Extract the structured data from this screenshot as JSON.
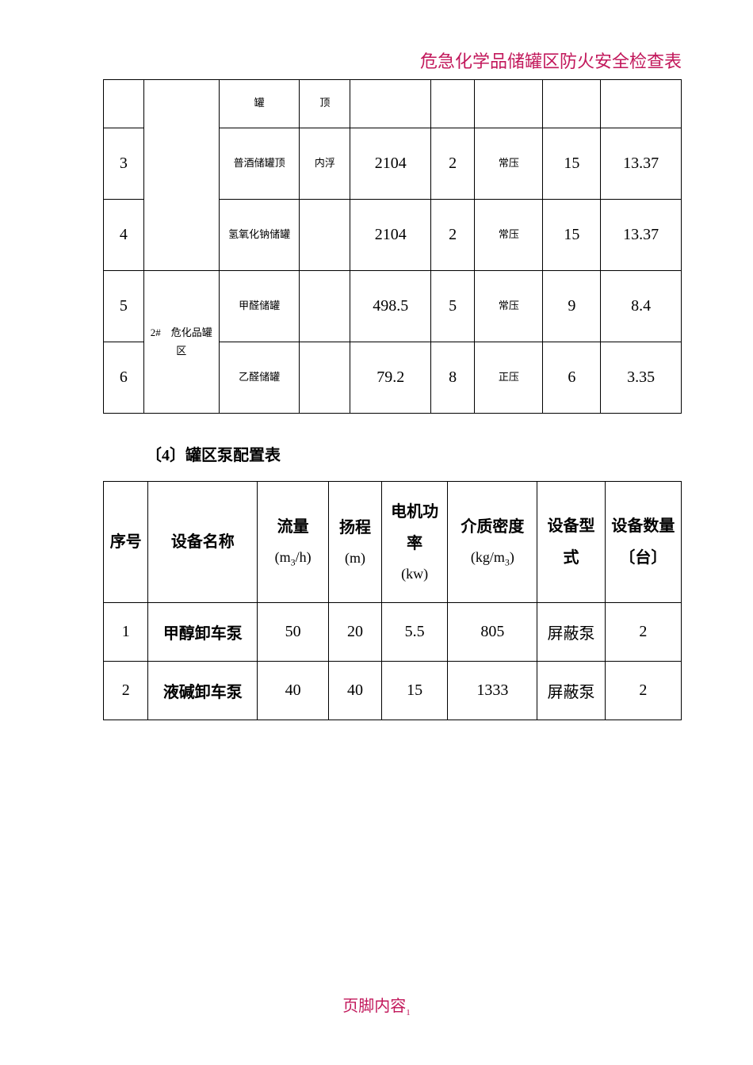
{
  "header": {
    "title": "危急化学品储罐区防火安全检查表",
    "color": "#c2185b"
  },
  "tank_table": {
    "rows": [
      {
        "seq": "",
        "name": "罐",
        "top": "顶",
        "v1": "",
        "v2": "",
        "pressure": "",
        "d1": "",
        "d2": ""
      },
      {
        "seq": "3",
        "name": "普酒储罐顶",
        "top": "内浮",
        "v1": "2104",
        "v2": "2",
        "pressure": "常压",
        "d1": "15",
        "d2": "13.37"
      },
      {
        "seq": "4",
        "name": "氢氧化钠储罐",
        "top": "",
        "v1": "2104",
        "v2": "2",
        "pressure": "常压",
        "d1": "15",
        "d2": "13.37"
      },
      {
        "seq": "5",
        "name": "甲醛储罐",
        "top": "",
        "v1": "498.5",
        "v2": "5",
        "pressure": "常压",
        "d1": "9",
        "d2": "8.4"
      },
      {
        "seq": "6",
        "name": "乙醛储罐",
        "top": "",
        "v1": "79.2",
        "v2": "8",
        "pressure": "正压",
        "d1": "6",
        "d2": "3.35"
      }
    ],
    "area_label": "2#　危化品罐区"
  },
  "section4_title": "〔4〕罐区泵配置表",
  "pump_table": {
    "headers": {
      "seq": "序号",
      "name": "设备名称",
      "flow": "流量",
      "flow_unit_pre": "(m",
      "flow_unit_sub": "3",
      "flow_unit_post": "/h)",
      "head": "扬程",
      "head_unit": "(m)",
      "power": "电机功率",
      "power_unit": "(kw)",
      "density": "介质密度",
      "density_unit_pre": "(kg/m",
      "density_unit_sub": "3",
      "density_unit_post": ")",
      "type": "设备型式",
      "qty": "设备数量〔台〕"
    },
    "rows": [
      {
        "seq": "1",
        "name": "甲醇卸车泵",
        "flow": "50",
        "head": "20",
        "power": "5.5",
        "density": "805",
        "type": "屏蔽泵",
        "qty": "2"
      },
      {
        "seq": "2",
        "name": "液碱卸车泵",
        "flow": "40",
        "head": "40",
        "power": "15",
        "density": "1333",
        "type": "屏蔽泵",
        "qty": "2"
      }
    ]
  },
  "footer": {
    "text": "页脚内容",
    "page": "1",
    "color": "#c2185b"
  }
}
